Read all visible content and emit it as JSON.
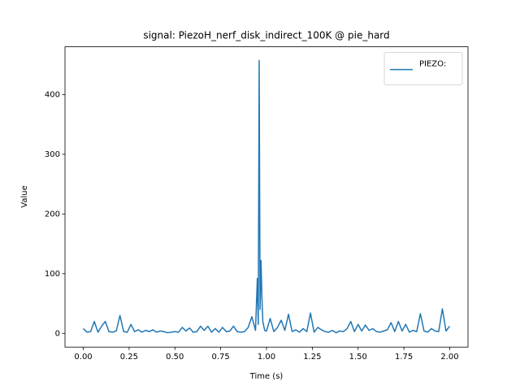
{
  "chart_data": {
    "type": "line",
    "title": "signal: PiezoH_nerf_disk_indirect_100K @ pie_hard",
    "xlabel": "Time (s)",
    "ylabel": "Value",
    "x": [
      0.0,
      0.02,
      0.04,
      0.06,
      0.08,
      0.1,
      0.12,
      0.14,
      0.16,
      0.18,
      0.2,
      0.22,
      0.24,
      0.26,
      0.28,
      0.3,
      0.32,
      0.34,
      0.36,
      0.38,
      0.4,
      0.42,
      0.44,
      0.46,
      0.48,
      0.5,
      0.52,
      0.54,
      0.56,
      0.58,
      0.6,
      0.62,
      0.64,
      0.66,
      0.68,
      0.7,
      0.72,
      0.74,
      0.76,
      0.78,
      0.8,
      0.82,
      0.84,
      0.86,
      0.88,
      0.9,
      0.92,
      0.94,
      0.95,
      0.955,
      0.96,
      0.965,
      0.97,
      0.975,
      0.98,
      0.99,
      1.0,
      1.02,
      1.04,
      1.06,
      1.08,
      1.1,
      1.12,
      1.14,
      1.16,
      1.18,
      1.2,
      1.22,
      1.24,
      1.26,
      1.28,
      1.3,
      1.32,
      1.34,
      1.36,
      1.38,
      1.4,
      1.42,
      1.44,
      1.46,
      1.48,
      1.5,
      1.52,
      1.54,
      1.56,
      1.58,
      1.6,
      1.62,
      1.64,
      1.66,
      1.68,
      1.7,
      1.72,
      1.74,
      1.76,
      1.78,
      1.8,
      1.82,
      1.84,
      1.86,
      1.88,
      1.9,
      1.92,
      1.94,
      1.96,
      1.98,
      2.0
    ],
    "series": [
      {
        "name": "PIEZO:",
        "color": "#1f77b4",
        "values": [
          8,
          2,
          3,
          20,
          2,
          12,
          20,
          3,
          2,
          4,
          30,
          3,
          2,
          15,
          3,
          6,
          2,
          5,
          3,
          6,
          2,
          4,
          3,
          1,
          2,
          3,
          2,
          10,
          4,
          9,
          2,
          3,
          12,
          5,
          12,
          2,
          8,
          2,
          10,
          3,
          4,
          12,
          3,
          2,
          3,
          10,
          28,
          5,
          92,
          15,
          457,
          40,
          122,
          60,
          20,
          5,
          4,
          25,
          3,
          10,
          22,
          5,
          32,
          3,
          6,
          2,
          8,
          3,
          34,
          2,
          10,
          6,
          3,
          2,
          5,
          1,
          4,
          3,
          8,
          20,
          3,
          15,
          4,
          14,
          5,
          8,
          3,
          2,
          4,
          6,
          18,
          3,
          20,
          4,
          15,
          2,
          5,
          3,
          33,
          4,
          2,
          8,
          4,
          3,
          41,
          4,
          12
        ]
      }
    ],
    "xlim": [
      -0.1,
      2.1
    ],
    "ylim": [
      -23,
      480
    ],
    "xticks": [
      {
        "value": 0,
        "label": "0.00"
      },
      {
        "value": 0.25,
        "label": "0.25"
      },
      {
        "value": 0.5,
        "label": "0.50"
      },
      {
        "value": 0.75,
        "label": "0.75"
      },
      {
        "value": 1,
        "label": "1.00"
      },
      {
        "value": 1.25,
        "label": "1.25"
      },
      {
        "value": 1.5,
        "label": "1.50"
      },
      {
        "value": 1.75,
        "label": "1.75"
      },
      {
        "value": 2,
        "label": "2.00"
      }
    ],
    "yticks": [
      0,
      100,
      200,
      300,
      400
    ],
    "legend": "upper right"
  }
}
